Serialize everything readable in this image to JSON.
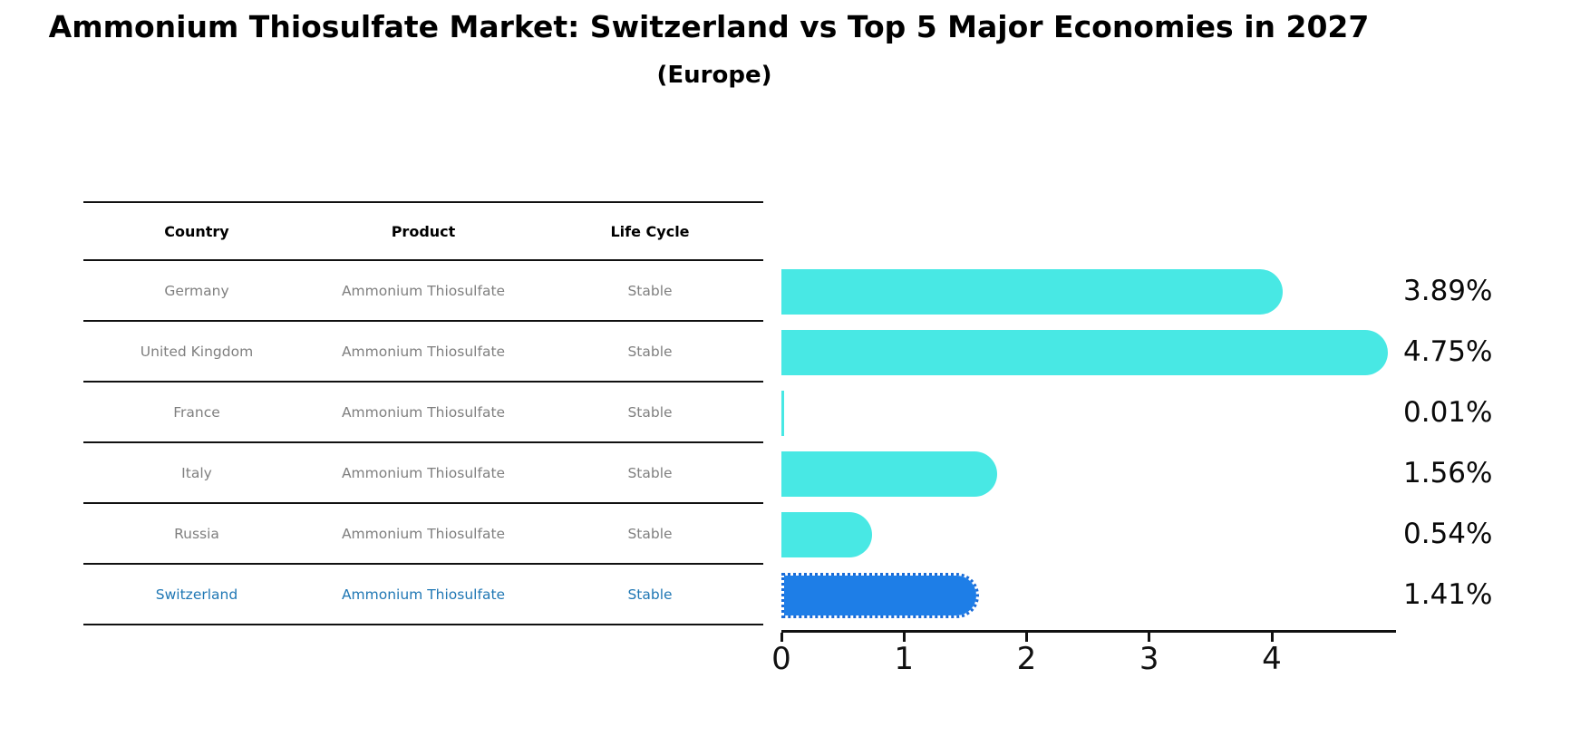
{
  "title": "Ammonium Thiosulfate Market: Switzerland vs Top 5 Major Economies in 2027",
  "subtitle": "(Europe)",
  "table": {
    "headers": [
      "Country",
      "Product",
      "Life Cycle"
    ],
    "rows": [
      {
        "country": "Germany",
        "product": "Ammonium Thiosulfate",
        "life_cycle": "Stable",
        "highlight": false
      },
      {
        "country": "United Kingdom",
        "product": "Ammonium Thiosulfate",
        "life_cycle": "Stable",
        "highlight": false
      },
      {
        "country": "France",
        "product": "Ammonium Thiosulfate",
        "life_cycle": "Stable",
        "highlight": false
      },
      {
        "country": "Italy",
        "product": "Ammonium Thiosulfate",
        "life_cycle": "Stable",
        "highlight": false
      },
      {
        "country": "Russia",
        "product": "Ammonium Thiosulfate",
        "life_cycle": "Stable",
        "highlight": false
      },
      {
        "country": "Switzerland",
        "product": "Ammonium Thiosulfate",
        "life_cycle": "Stable",
        "highlight": true
      }
    ]
  },
  "chart_data": {
    "type": "bar",
    "orientation": "horizontal",
    "categories": [
      "Germany",
      "United Kingdom",
      "France",
      "Italy",
      "Russia",
      "Switzerland"
    ],
    "values": [
      3.89,
      4.75,
      0.01,
      1.56,
      0.54,
      1.41
    ],
    "value_labels": [
      "3.89%",
      "4.75%",
      "0.01%",
      "1.56%",
      "0.54%",
      "1.41%"
    ],
    "xlim": [
      0,
      5
    ],
    "xticks": [
      "0",
      "1",
      "2",
      "3",
      "4"
    ],
    "grid": "off",
    "legend": "none",
    "bar_color": "#48E8E4",
    "highlight_index": 5,
    "highlight_bar_color": "#1E7EE7",
    "highlight_text_color": "#1F77B4",
    "title": "Ammonium Thiosulfate Market: Switzerland vs Top 5 Major Economies in 2027",
    "subtitle": "(Europe)"
  }
}
